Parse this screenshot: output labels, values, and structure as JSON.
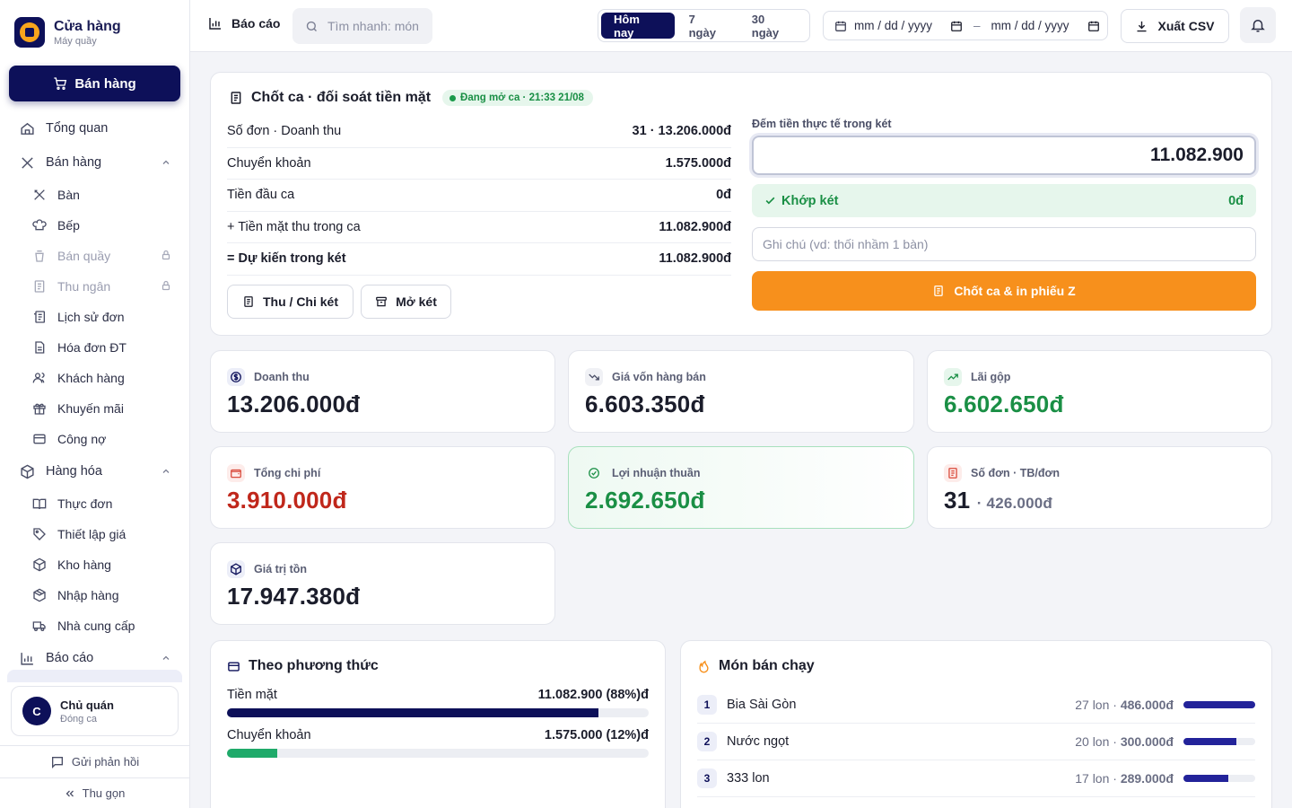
{
  "brand": {
    "name": "Cửa hàng",
    "sub": "Máy quầy"
  },
  "sell_button": "Bán hàng",
  "nav": {
    "overview": "Tổng quan",
    "sales_group": "Bán hàng",
    "sales_items": [
      {
        "label": "Bàn",
        "locked": false
      },
      {
        "label": "Bếp",
        "locked": false
      },
      {
        "label": "Bán quầy",
        "locked": true
      },
      {
        "label": "Thu ngân",
        "locked": true
      },
      {
        "label": "Lịch sử đơn",
        "locked": false
      },
      {
        "label": "Hóa đơn ĐT",
        "locked": false
      },
      {
        "label": "Khách hàng",
        "locked": false
      },
      {
        "label": "Khuyến mãi",
        "locked": false
      },
      {
        "label": "Công nợ",
        "locked": false
      }
    ],
    "goods_group": "Hàng hóa",
    "goods_items": [
      "Thực đơn",
      "Thiết lập giá",
      "Kho hàng",
      "Nhập hàng",
      "Nhà cung cấp"
    ],
    "report_group": "Báo cáo"
  },
  "user": {
    "initial": "C",
    "name": "Chủ quán",
    "role": "Đóng ca"
  },
  "feedback": "Gửi phản hồi",
  "collapse": "Thu gọn",
  "topbar": {
    "title": "Báo cáo",
    "search_placeholder": "Tìm nhanh: món",
    "ranges": [
      "Hôm nay",
      "7 ngày",
      "30 ngày"
    ],
    "active_range": 0,
    "date_from": "mm / dd / yyyy",
    "date_sep": "–",
    "date_to": "mm / dd / yyyy",
    "export": "Xuất CSV"
  },
  "shift": {
    "title": "Chốt ca · đối soát tiền mặt",
    "status": "Đang mở ca · 21:33 21/08",
    "rows": [
      {
        "label": "Số đơn · Doanh thu",
        "value": "31 · 13.206.000đ"
      },
      {
        "label": "Chuyển khoản",
        "value": "1.575.000đ"
      },
      {
        "label": "Tiền đầu ca",
        "value": "0đ"
      },
      {
        "label": "+ Tiền mặt thu trong ca",
        "value": "11.082.900đ"
      },
      {
        "label": "= Dự kiến trong két",
        "value": "11.082.900đ"
      }
    ],
    "cash_in_out": "Thu / Chi két",
    "open_drawer": "Mở két",
    "count_label": "Đếm tiền thực tế trong két",
    "count_value": "11.082.900",
    "match_label": "Khớp két",
    "match_value": "0đ",
    "note_placeholder": "Ghi chú (vd: thối nhầm 1 bàn)",
    "close_button": "Chốt ca & in phiếu Z"
  },
  "kpis": {
    "revenue": {
      "label": "Doanh thu",
      "value": "13.206.000đ"
    },
    "cogs": {
      "label": "Giá vốn hàng bán",
      "value": "6.603.350đ"
    },
    "gross": {
      "label": "Lãi gộp",
      "value": "6.602.650đ"
    },
    "expense": {
      "label": "Tổng chi phí",
      "value": "3.910.000đ"
    },
    "net": {
      "label": "Lợi nhuận thuần",
      "value": "2.692.650đ"
    },
    "orders": {
      "label": "Số đơn · TB/đơn",
      "value": "31",
      "sub": "· 426.000đ"
    },
    "stock": {
      "label": "Giá trị tồn",
      "value": "17.947.380đ"
    }
  },
  "colors": {
    "navy": "#0d1059",
    "orange": "#f7901c",
    "green": "#1a8f45",
    "red": "#c0271b"
  },
  "payment": {
    "title": "Theo phương thức",
    "items": [
      {
        "label": "Tiền mặt",
        "value": "11.082.900 (88%)đ",
        "share": 0.88,
        "color": "#0d1059"
      },
      {
        "label": "Chuyển khoản",
        "value": "1.575.000 (12%)đ",
        "share": 0.12,
        "color": "#1faa6a"
      }
    ]
  },
  "best": {
    "title": "Món bán chạy",
    "items": [
      {
        "rank": "1",
        "name": "Bia Sài Gòn",
        "qty": "27 lon ·",
        "amount": "486.000đ",
        "share": 1.0
      },
      {
        "rank": "2",
        "name": "Nước ngọt",
        "qty": "20 lon ·",
        "amount": "300.000đ",
        "share": 0.74
      },
      {
        "rank": "3",
        "name": "333 lon",
        "qty": "17 lon ·",
        "amount": "289.000đ",
        "share": 0.63
      }
    ]
  }
}
